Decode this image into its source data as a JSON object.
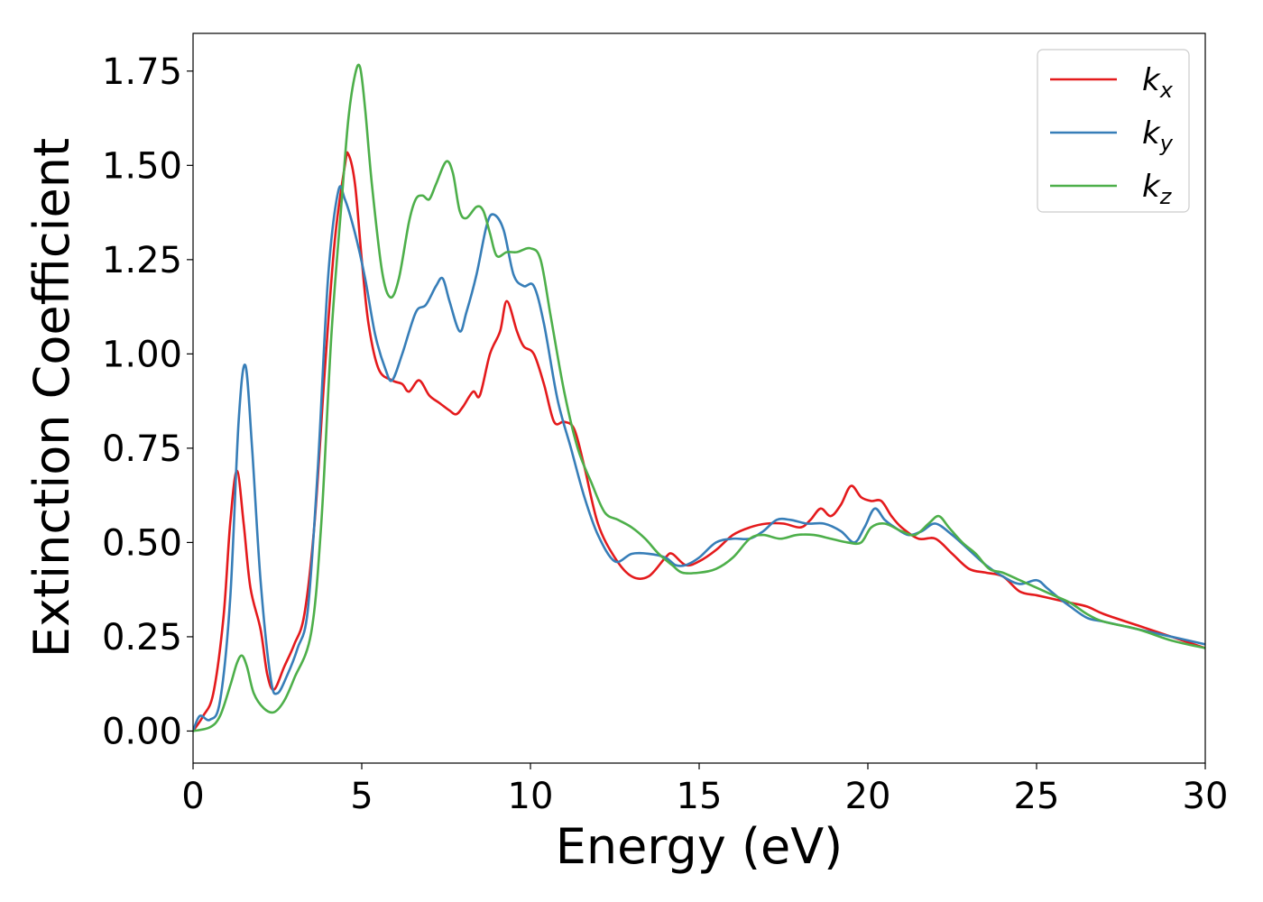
{
  "chart_data": {
    "type": "line",
    "xlabel": "Energy (eV)",
    "ylabel": "Extinction Coefficient",
    "xlim": [
      0,
      30
    ],
    "ylim": [
      -0.085,
      1.85
    ],
    "xticks": [
      0,
      5,
      10,
      15,
      20,
      25,
      30
    ],
    "xtick_labels": [
      "0",
      "5",
      "10",
      "15",
      "20",
      "25",
      "30"
    ],
    "yticks": [
      0.0,
      0.25,
      0.5,
      0.75,
      1.0,
      1.25,
      1.5,
      1.75
    ],
    "ytick_labels": [
      "0.00",
      "0.25",
      "0.50",
      "0.75",
      "1.00",
      "1.25",
      "1.50",
      "1.75"
    ],
    "grid": false,
    "legend_position": "top-right",
    "series": [
      {
        "name": "kx",
        "label_base": "k",
        "label_sub": "x",
        "color": "#e41a1c",
        "points": [
          [
            0,
            0.0
          ],
          [
            0.3,
            0.04
          ],
          [
            0.6,
            0.1
          ],
          [
            0.9,
            0.3
          ],
          [
            1.1,
            0.55
          ],
          [
            1.3,
            0.69
          ],
          [
            1.5,
            0.55
          ],
          [
            1.7,
            0.38
          ],
          [
            2.0,
            0.27
          ],
          [
            2.2,
            0.15
          ],
          [
            2.4,
            0.11
          ],
          [
            2.7,
            0.17
          ],
          [
            3.0,
            0.23
          ],
          [
            3.3,
            0.31
          ],
          [
            3.6,
            0.55
          ],
          [
            3.9,
            0.95
          ],
          [
            4.2,
            1.3
          ],
          [
            4.5,
            1.5
          ],
          [
            4.6,
            1.53
          ],
          [
            4.8,
            1.45
          ],
          [
            5.0,
            1.25
          ],
          [
            5.2,
            1.08
          ],
          [
            5.5,
            0.96
          ],
          [
            5.9,
            0.93
          ],
          [
            6.2,
            0.92
          ],
          [
            6.4,
            0.9
          ],
          [
            6.7,
            0.93
          ],
          [
            7.0,
            0.89
          ],
          [
            7.3,
            0.87
          ],
          [
            7.6,
            0.85
          ],
          [
            7.8,
            0.84
          ],
          [
            8.0,
            0.86
          ],
          [
            8.3,
            0.9
          ],
          [
            8.5,
            0.89
          ],
          [
            8.8,
            1.0
          ],
          [
            9.1,
            1.06
          ],
          [
            9.3,
            1.14
          ],
          [
            9.6,
            1.06
          ],
          [
            9.8,
            1.02
          ],
          [
            10.1,
            1.0
          ],
          [
            10.4,
            0.92
          ],
          [
            10.7,
            0.82
          ],
          [
            11.0,
            0.82
          ],
          [
            11.3,
            0.8
          ],
          [
            11.6,
            0.7
          ],
          [
            12.0,
            0.55
          ],
          [
            12.5,
            0.46
          ],
          [
            13.0,
            0.41
          ],
          [
            13.5,
            0.41
          ],
          [
            14.0,
            0.46
          ],
          [
            14.2,
            0.47
          ],
          [
            14.6,
            0.44
          ],
          [
            15.0,
            0.45
          ],
          [
            15.5,
            0.48
          ],
          [
            16.0,
            0.52
          ],
          [
            16.5,
            0.54
          ],
          [
            17.0,
            0.55
          ],
          [
            17.5,
            0.55
          ],
          [
            18.0,
            0.54
          ],
          [
            18.3,
            0.56
          ],
          [
            18.6,
            0.59
          ],
          [
            18.9,
            0.57
          ],
          [
            19.2,
            0.6
          ],
          [
            19.5,
            0.65
          ],
          [
            19.8,
            0.62
          ],
          [
            20.1,
            0.61
          ],
          [
            20.4,
            0.61
          ],
          [
            20.7,
            0.57
          ],
          [
            21.0,
            0.54
          ],
          [
            21.5,
            0.51
          ],
          [
            22.0,
            0.51
          ],
          [
            22.5,
            0.47
          ],
          [
            23.0,
            0.43
          ],
          [
            23.5,
            0.42
          ],
          [
            24.0,
            0.41
          ],
          [
            24.5,
            0.37
          ],
          [
            25.0,
            0.36
          ],
          [
            25.5,
            0.35
          ],
          [
            26.0,
            0.34
          ],
          [
            26.5,
            0.33
          ],
          [
            27.0,
            0.31
          ],
          [
            28.0,
            0.28
          ],
          [
            29.0,
            0.25
          ],
          [
            30.0,
            0.22
          ]
        ]
      },
      {
        "name": "ky",
        "label_base": "k",
        "label_sub": "y",
        "color": "#377eb8",
        "points": [
          [
            0,
            0.0
          ],
          [
            0.2,
            0.04
          ],
          [
            0.5,
            0.03
          ],
          [
            0.8,
            0.08
          ],
          [
            1.1,
            0.35
          ],
          [
            1.35,
            0.82
          ],
          [
            1.55,
            0.97
          ],
          [
            1.75,
            0.75
          ],
          [
            2.0,
            0.4
          ],
          [
            2.3,
            0.14
          ],
          [
            2.5,
            0.1
          ],
          [
            2.8,
            0.15
          ],
          [
            3.1,
            0.22
          ],
          [
            3.4,
            0.32
          ],
          [
            3.7,
            0.7
          ],
          [
            4.0,
            1.2
          ],
          [
            4.3,
            1.43
          ],
          [
            4.5,
            1.41
          ],
          [
            4.8,
            1.32
          ],
          [
            5.1,
            1.2
          ],
          [
            5.4,
            1.05
          ],
          [
            5.7,
            0.96
          ],
          [
            5.9,
            0.93
          ],
          [
            6.2,
            1.0
          ],
          [
            6.6,
            1.11
          ],
          [
            6.9,
            1.13
          ],
          [
            7.2,
            1.18
          ],
          [
            7.4,
            1.2
          ],
          [
            7.6,
            1.14
          ],
          [
            7.9,
            1.06
          ],
          [
            8.1,
            1.11
          ],
          [
            8.4,
            1.21
          ],
          [
            8.7,
            1.34
          ],
          [
            8.9,
            1.37
          ],
          [
            9.2,
            1.33
          ],
          [
            9.5,
            1.21
          ],
          [
            9.8,
            1.18
          ],
          [
            10.1,
            1.18
          ],
          [
            10.4,
            1.08
          ],
          [
            10.8,
            0.88
          ],
          [
            11.2,
            0.75
          ],
          [
            11.6,
            0.62
          ],
          [
            12.0,
            0.52
          ],
          [
            12.5,
            0.45
          ],
          [
            13.0,
            0.47
          ],
          [
            13.5,
            0.47
          ],
          [
            14.0,
            0.46
          ],
          [
            14.3,
            0.44
          ],
          [
            14.6,
            0.44
          ],
          [
            15.0,
            0.46
          ],
          [
            15.5,
            0.5
          ],
          [
            16.0,
            0.51
          ],
          [
            16.5,
            0.51
          ],
          [
            16.9,
            0.53
          ],
          [
            17.3,
            0.56
          ],
          [
            17.7,
            0.56
          ],
          [
            18.2,
            0.55
          ],
          [
            18.7,
            0.55
          ],
          [
            19.2,
            0.53
          ],
          [
            19.6,
            0.5
          ],
          [
            19.9,
            0.54
          ],
          [
            20.2,
            0.59
          ],
          [
            20.5,
            0.56
          ],
          [
            20.8,
            0.54
          ],
          [
            21.2,
            0.52
          ],
          [
            21.6,
            0.53
          ],
          [
            22.0,
            0.55
          ],
          [
            22.5,
            0.52
          ],
          [
            23.0,
            0.48
          ],
          [
            23.5,
            0.44
          ],
          [
            24.0,
            0.41
          ],
          [
            24.5,
            0.39
          ],
          [
            25.0,
            0.4
          ],
          [
            25.3,
            0.38
          ],
          [
            25.7,
            0.35
          ],
          [
            26.0,
            0.33
          ],
          [
            26.5,
            0.3
          ],
          [
            27.0,
            0.29
          ],
          [
            28.0,
            0.27
          ],
          [
            29.0,
            0.25
          ],
          [
            30.0,
            0.23
          ]
        ]
      },
      {
        "name": "kz",
        "label_base": "k",
        "label_sub": "z",
        "color": "#4daf4a",
        "points": [
          [
            0,
            0.0
          ],
          [
            0.5,
            0.01
          ],
          [
            0.8,
            0.04
          ],
          [
            1.1,
            0.12
          ],
          [
            1.3,
            0.18
          ],
          [
            1.45,
            0.2
          ],
          [
            1.6,
            0.17
          ],
          [
            1.8,
            0.1
          ],
          [
            2.1,
            0.06
          ],
          [
            2.4,
            0.05
          ],
          [
            2.7,
            0.08
          ],
          [
            3.0,
            0.14
          ],
          [
            3.5,
            0.26
          ],
          [
            3.8,
            0.55
          ],
          [
            4.1,
            1.05
          ],
          [
            4.4,
            1.4
          ],
          [
            4.6,
            1.62
          ],
          [
            4.8,
            1.74
          ],
          [
            4.95,
            1.76
          ],
          [
            5.1,
            1.65
          ],
          [
            5.3,
            1.45
          ],
          [
            5.6,
            1.22
          ],
          [
            5.85,
            1.15
          ],
          [
            6.1,
            1.2
          ],
          [
            6.4,
            1.35
          ],
          [
            6.6,
            1.41
          ],
          [
            6.8,
            1.42
          ],
          [
            7.0,
            1.41
          ],
          [
            7.2,
            1.45
          ],
          [
            7.5,
            1.51
          ],
          [
            7.7,
            1.48
          ],
          [
            7.9,
            1.38
          ],
          [
            8.1,
            1.36
          ],
          [
            8.4,
            1.39
          ],
          [
            8.6,
            1.38
          ],
          [
            8.8,
            1.32
          ],
          [
            9.0,
            1.26
          ],
          [
            9.3,
            1.27
          ],
          [
            9.6,
            1.27
          ],
          [
            10.0,
            1.28
          ],
          [
            10.3,
            1.25
          ],
          [
            10.6,
            1.1
          ],
          [
            11.0,
            0.9
          ],
          [
            11.4,
            0.75
          ],
          [
            11.8,
            0.66
          ],
          [
            12.2,
            0.58
          ],
          [
            12.6,
            0.56
          ],
          [
            13.0,
            0.54
          ],
          [
            13.4,
            0.51
          ],
          [
            13.8,
            0.47
          ],
          [
            14.2,
            0.44
          ],
          [
            14.5,
            0.42
          ],
          [
            15.0,
            0.42
          ],
          [
            15.5,
            0.43
          ],
          [
            16.0,
            0.46
          ],
          [
            16.5,
            0.51
          ],
          [
            16.9,
            0.52
          ],
          [
            17.4,
            0.51
          ],
          [
            17.9,
            0.52
          ],
          [
            18.4,
            0.52
          ],
          [
            18.9,
            0.51
          ],
          [
            19.4,
            0.5
          ],
          [
            19.8,
            0.5
          ],
          [
            20.1,
            0.54
          ],
          [
            20.5,
            0.55
          ],
          [
            21.0,
            0.53
          ],
          [
            21.4,
            0.52
          ],
          [
            21.8,
            0.55
          ],
          [
            22.1,
            0.57
          ],
          [
            22.4,
            0.54
          ],
          [
            22.8,
            0.5
          ],
          [
            23.2,
            0.47
          ],
          [
            23.6,
            0.43
          ],
          [
            24.0,
            0.42
          ],
          [
            24.5,
            0.4
          ],
          [
            25.0,
            0.38
          ],
          [
            25.5,
            0.36
          ],
          [
            26.0,
            0.34
          ],
          [
            26.5,
            0.31
          ],
          [
            27.0,
            0.29
          ],
          [
            28.0,
            0.27
          ],
          [
            29.0,
            0.24
          ],
          [
            30.0,
            0.22
          ]
        ]
      }
    ]
  }
}
